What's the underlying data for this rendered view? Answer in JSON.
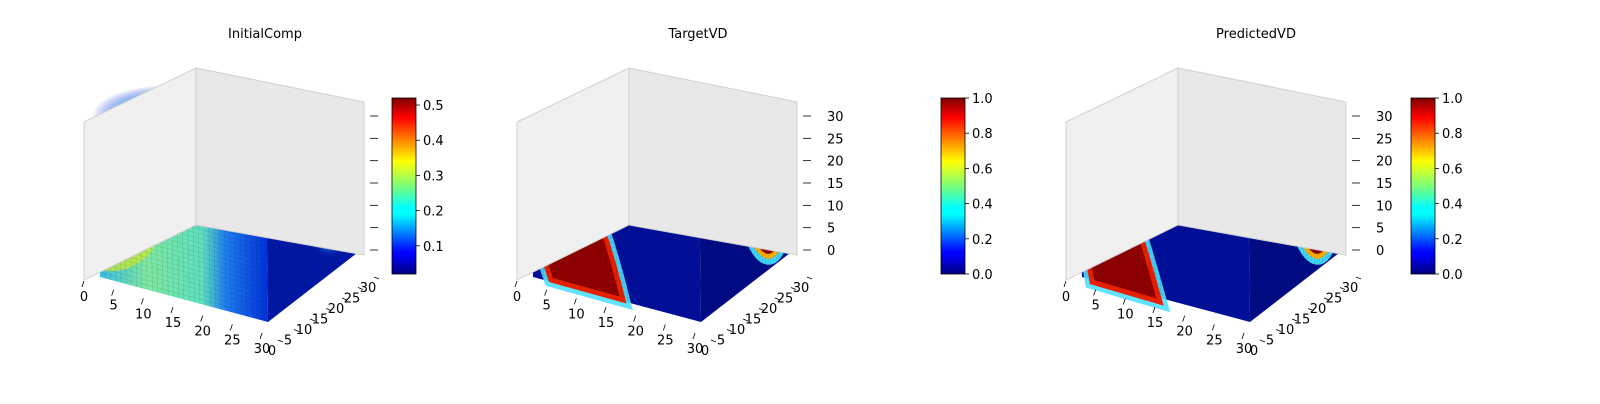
{
  "chart_data": [
    {
      "type": "voxel3d",
      "title": "InitialComp",
      "x_ticks": [
        "0",
        "5",
        "10",
        "15",
        "20",
        "25",
        "30"
      ],
      "y_ticks": [
        "0",
        "5",
        "10",
        "15",
        "20",
        "25",
        "30"
      ],
      "z_ticks": [],
      "colormap": "jet",
      "colorbar": {
        "range": [
          0.02,
          0.52
        ],
        "ticks": [
          "0.1",
          "0.2",
          "0.3",
          "0.4",
          "0.5"
        ],
        "tick_values": [
          0.1,
          0.2,
          0.3,
          0.4,
          0.5
        ]
      }
    },
    {
      "type": "voxel3d",
      "title": "TargetVD",
      "x_ticks": [
        "0",
        "5",
        "10",
        "15",
        "20",
        "25",
        "30"
      ],
      "y_ticks": [
        "0",
        "5",
        "10",
        "15",
        "20",
        "25",
        "30"
      ],
      "z_ticks": [
        "0",
        "5",
        "10",
        "15",
        "20",
        "25",
        "30"
      ],
      "colormap": "jet",
      "colorbar": {
        "range": [
          0.0,
          1.0
        ],
        "ticks": [
          "0.0",
          "0.2",
          "0.4",
          "0.6",
          "0.8",
          "1.0"
        ],
        "tick_values": [
          0,
          0.2,
          0.4,
          0.6,
          0.8,
          1.0
        ]
      }
    },
    {
      "type": "voxel3d",
      "title": "PredictedVD",
      "x_ticks": [
        "0",
        "5",
        "10",
        "15",
        "20",
        "25",
        "30"
      ],
      "y_ticks": [
        "0",
        "5",
        "10",
        "15",
        "20",
        "25",
        "30"
      ],
      "z_ticks": [
        "0",
        "5",
        "10",
        "15",
        "20",
        "25",
        "30"
      ],
      "colormap": "jet",
      "colorbar": {
        "range": [
          0.0,
          1.0
        ],
        "ticks": [
          "0.0",
          "0.2",
          "0.4",
          "0.6",
          "0.8",
          "1.0"
        ],
        "tick_values": [
          0,
          0.2,
          0.4,
          0.6,
          0.8,
          1.0
        ]
      }
    }
  ]
}
